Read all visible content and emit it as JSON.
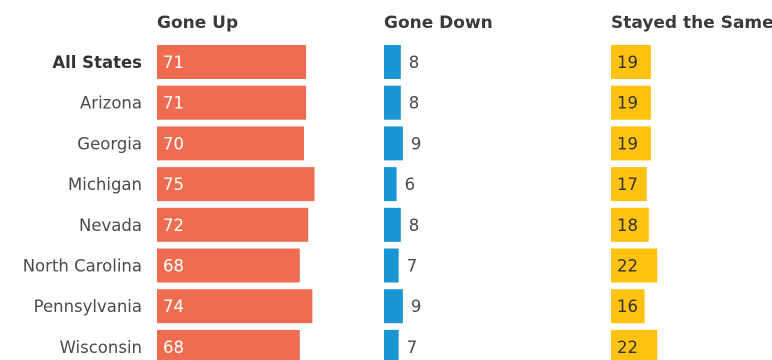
{
  "chart_data": {
    "type": "bar",
    "categories": [
      "All States",
      "Arizona",
      "Georgia",
      "Michigan",
      "Nevada",
      "North Carolina",
      "Pennsylvania",
      "Wisconsin"
    ],
    "bold_categories": [
      "All States"
    ],
    "series": [
      {
        "name": "Gone Up",
        "values": [
          71,
          71,
          70,
          75,
          72,
          68,
          74,
          68
        ],
        "color": "#f06c51",
        "label_color": "#ffffff"
      },
      {
        "name": "Gone Down",
        "values": [
          8,
          8,
          9,
          6,
          8,
          7,
          9,
          7
        ],
        "color": "#1a96d4",
        "label_color": "#4a4a4a"
      },
      {
        "name": "Stayed the Same",
        "values": [
          19,
          19,
          19,
          17,
          18,
          22,
          16,
          22
        ],
        "color": "#ffc20e",
        "label_color": "#333333"
      }
    ],
    "xlabel": "",
    "ylabel": "",
    "grid": false,
    "legend": "none"
  }
}
